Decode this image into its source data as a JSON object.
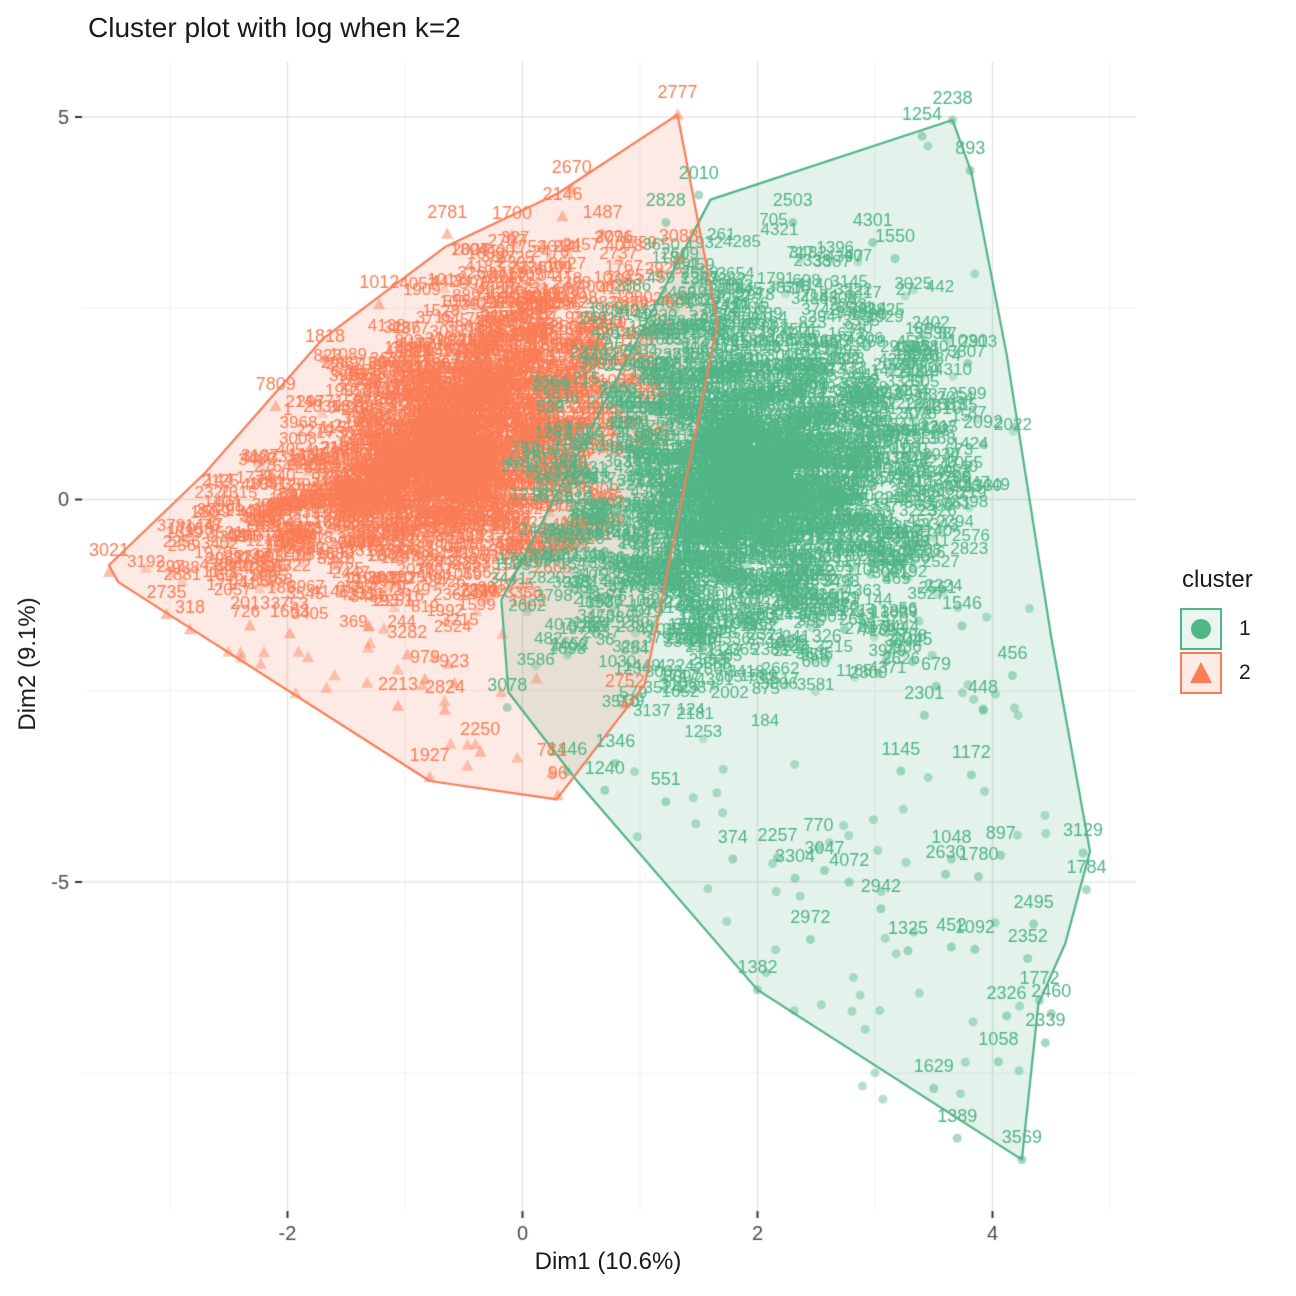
{
  "colors": {
    "cluster1": "#52B586",
    "cluster2": "#FA7D57",
    "hull_fill_alpha": 0.16,
    "grid_major": "#E4E4E4",
    "grid_minor": "#F1F1F1",
    "tick_mark": "#333333",
    "tick_label": "#4D4D4D",
    "text": "#1A1A1A",
    "background": "#FFFFFF"
  },
  "chart_data": {
    "type": "scatter",
    "title": "Cluster plot with log when k=2",
    "xlabel": "Dim1 (10.6%)",
    "ylabel": "Dim2 (9.1%)",
    "xlim": [
      -3.75,
      5.21
    ],
    "ylim": [
      -9.3,
      5.72
    ],
    "grid": true,
    "x_major_ticks": [
      {
        "value": -2,
        "label": "-2"
      },
      {
        "value": 0,
        "label": "0"
      },
      {
        "value": 2,
        "label": "2"
      },
      {
        "value": 4,
        "label": "4"
      }
    ],
    "y_major_ticks": [
      {
        "value": 5,
        "label": "5"
      },
      {
        "value": 0,
        "label": "0"
      },
      {
        "value": -5,
        "label": "-5"
      }
    ],
    "x_minor_ticks": [
      -3,
      -1,
      1,
      3,
      5
    ],
    "y_minor_ticks": [
      2.5,
      -2.5,
      -7.5
    ],
    "legend": {
      "title": "cluster",
      "position": "right",
      "entries": [
        {
          "label": "1",
          "marker": "circle",
          "color": "#52B586"
        },
        {
          "label": "2",
          "marker": "triangle",
          "color": "#FA7D57"
        }
      ]
    },
    "clusters": [
      {
        "name": "1",
        "color": "#52B586",
        "marker": "circle",
        "hull": [
          [
            3.66,
            4.96
          ],
          [
            3.82,
            4.28
          ],
          [
            4.12,
            1.9
          ],
          [
            4.5,
            -1.8
          ],
          [
            4.83,
            -4.6
          ],
          [
            4.62,
            -5.8
          ],
          [
            4.39,
            -6.6
          ],
          [
            4.25,
            -8.63
          ],
          [
            2.0,
            -6.41
          ],
          [
            0.48,
            -3.71
          ],
          [
            -0.12,
            -2.52
          ],
          [
            -0.18,
            -1.31
          ],
          [
            1.6,
            3.92
          ]
        ],
        "dense_blob": {
          "polygon": [
            [
              0.55,
              3.3
            ],
            [
              1.5,
              3.75
            ],
            [
              2.9,
              3.6
            ],
            [
              3.85,
              2.7
            ],
            [
              4.25,
              1.1
            ],
            [
              4.05,
              -0.7
            ],
            [
              3.35,
              -2.3
            ],
            [
              2.2,
              -3.15
            ],
            [
              1.0,
              -3.0
            ],
            [
              0.05,
              -2.35
            ],
            [
              -0.2,
              -1.15
            ],
            [
              -0.05,
              0.8
            ]
          ],
          "count": 1700
        },
        "sparse_regions": [
          {
            "polygon": [
              [
                0.55,
                -3.3
              ],
              [
                4.4,
                -3.5
              ],
              [
                4.7,
                -5.5
              ],
              [
                4.2,
                -7.6
              ],
              [
                3.2,
                -8.2
              ],
              [
                2.0,
                -6.3
              ],
              [
                0.8,
                -4.3
              ]
            ],
            "count": 48
          },
          {
            "polygon": [
              [
                2.6,
                -0.8
              ],
              [
                4.35,
                -1.0
              ],
              [
                4.4,
                -3.3
              ],
              [
                2.8,
                -3.3
              ]
            ],
            "count": 18
          }
        ],
        "extra_dots": [
          [
            3.85,
            2.95
          ],
          [
            3.45,
            4.62
          ],
          [
            4.2,
            0.95
          ]
        ],
        "labeled_points": [
          {
            "label": "2238",
            "x": 3.66,
            "y": 4.96
          },
          {
            "label": "1254",
            "x": 3.4,
            "y": 4.75
          },
          {
            "label": "893",
            "x": 3.81,
            "y": 4.3
          },
          {
            "label": "2010",
            "x": 1.5,
            "y": 3.98
          },
          {
            "label": "2828",
            "x": 1.22,
            "y": 3.62
          },
          {
            "label": "2503",
            "x": 2.3,
            "y": 3.62
          },
          {
            "label": "4301",
            "x": 2.98,
            "y": 3.36
          },
          {
            "label": "1550",
            "x": 3.17,
            "y": 3.15
          },
          {
            "label": "1030",
            "x": 3.79,
            "y": 1.78
          },
          {
            "label": "1610",
            "x": 3.57,
            "y": 0.9
          },
          {
            "label": "2092",
            "x": 3.92,
            "y": 0.72
          },
          {
            "label": "226",
            "x": 3.1,
            "y": -1.05
          },
          {
            "label": "1546",
            "x": 3.74,
            "y": -1.65
          },
          {
            "label": "650",
            "x": 2.74,
            "y": -1.7
          },
          {
            "label": "326",
            "x": 2.59,
            "y": -2.08
          },
          {
            "label": "3045",
            "x": 3.32,
            "y": -2.12
          },
          {
            "label": "456",
            "x": 4.17,
            "y": -2.3
          },
          {
            "label": "679",
            "x": 3.52,
            "y": -2.44
          },
          {
            "label": "448",
            "x": 3.92,
            "y": -2.74
          },
          {
            "label": "2301",
            "x": 3.42,
            "y": -2.82
          },
          {
            "label": "3078",
            "x": -0.13,
            "y": -2.72
          },
          {
            "label": "1145",
            "x": 3.22,
            "y": -3.55
          },
          {
            "label": "1172",
            "x": 3.82,
            "y": -3.6
          },
          {
            "label": "1446",
            "x": 0.38,
            "y": -3.56
          },
          {
            "label": "1346",
            "x": 0.79,
            "y": -3.45
          },
          {
            "label": "1240",
            "x": 0.7,
            "y": -3.8
          },
          {
            "label": "551",
            "x": 1.22,
            "y": -3.95
          },
          {
            "label": "374",
            "x": 1.79,
            "y": -4.7
          },
          {
            "label": "2257",
            "x": 2.17,
            "y": -4.68
          },
          {
            "label": "770",
            "x": 2.52,
            "y": -4.55
          },
          {
            "label": "3304",
            "x": 2.32,
            "y": -4.95
          },
          {
            "label": "4072",
            "x": 2.78,
            "y": -5.0
          },
          {
            "label": "3047",
            "x": 2.57,
            "y": -4.85
          },
          {
            "label": "1048",
            "x": 3.65,
            "y": -4.7
          },
          {
            "label": "897",
            "x": 4.07,
            "y": -4.65
          },
          {
            "label": "2630",
            "x": 3.6,
            "y": -4.9
          },
          {
            "label": "1780",
            "x": 3.88,
            "y": -4.93
          },
          {
            "label": "3129",
            "x": 4.77,
            "y": -4.62
          },
          {
            "label": "1784",
            "x": 4.8,
            "y": -5.1
          },
          {
            "label": "2495",
            "x": 4.35,
            "y": -5.55
          },
          {
            "label": "2942",
            "x": 3.05,
            "y": -5.35
          },
          {
            "label": "2972",
            "x": 2.45,
            "y": -5.75
          },
          {
            "label": "1325",
            "x": 3.28,
            "y": -5.9
          },
          {
            "label": "452",
            "x": 3.65,
            "y": -5.85
          },
          {
            "label": "1092",
            "x": 3.85,
            "y": -5.88
          },
          {
            "label": "2352",
            "x": 4.3,
            "y": -6.0
          },
          {
            "label": "1772",
            "x": 4.4,
            "y": -6.55
          },
          {
            "label": "2460",
            "x": 4.5,
            "y": -6.72
          },
          {
            "label": "2326",
            "x": 4.12,
            "y": -6.75
          },
          {
            "label": "2339",
            "x": 4.45,
            "y": -7.1
          },
          {
            "label": "1058",
            "x": 4.05,
            "y": -7.35
          },
          {
            "label": "1629",
            "x": 3.5,
            "y": -7.7
          },
          {
            "label": "1382",
            "x": 2.0,
            "y": -6.41
          },
          {
            "label": "1389",
            "x": 3.7,
            "y": -8.35
          },
          {
            "label": "3569",
            "x": 4.25,
            "y": -8.63
          }
        ]
      },
      {
        "name": "2",
        "color": "#FA7D57",
        "marker": "triangle",
        "hull": [
          [
            1.32,
            5.03
          ],
          [
            1.66,
            2.3
          ],
          [
            1.04,
            -2.42
          ],
          [
            0.29,
            -3.92
          ],
          [
            -0.79,
            -3.68
          ],
          [
            -3.44,
            -1.08
          ],
          [
            -3.52,
            -0.86
          ],
          [
            -2.7,
            0.35
          ],
          [
            -1.7,
            2.1
          ],
          [
            -0.66,
            3.3
          ],
          [
            0.3,
            4.0
          ]
        ],
        "dense_blob": {
          "polygon": [
            [
              -3.45,
              -0.95
            ],
            [
              -2.6,
              0.4
            ],
            [
              -1.15,
              2.8
            ],
            [
              0.25,
              3.95
            ],
            [
              1.1,
              3.6
            ],
            [
              1.55,
              2.5
            ],
            [
              1.35,
              1.0
            ],
            [
              0.7,
              -1.1
            ],
            [
              -0.3,
              -1.85
            ],
            [
              -1.8,
              -1.7
            ],
            [
              -3.1,
              -1.4
            ]
          ],
          "count": 1500
        },
        "sparse_regions": [
          {
            "polygon": [
              [
                -3.1,
                -1.45
              ],
              [
                0.15,
                -1.7
              ],
              [
                0.6,
                -3.3
              ],
              [
                -0.6,
                -3.6
              ],
              [
                -2.6,
                -2.0
              ]
            ],
            "count": 26
          }
        ],
        "extra_dots": [
          [
            -0.4,
            -3.2
          ],
          [
            -1.6,
            -2.3
          ],
          [
            -2.2,
            -2.0
          ]
        ],
        "labeled_points": [
          {
            "label": "2777",
            "x": 1.32,
            "y": 5.03
          },
          {
            "label": "2670",
            "x": 0.42,
            "y": 4.05
          },
          {
            "label": "2146",
            "x": 0.34,
            "y": 3.7
          },
          {
            "label": "1700",
            "x": -0.09,
            "y": 3.45
          },
          {
            "label": "2781",
            "x": -0.64,
            "y": 3.47
          },
          {
            "label": "1487",
            "x": 0.68,
            "y": 3.47
          },
          {
            "label": "3088",
            "x": 1.33,
            "y": 3.15
          },
          {
            "label": "1012",
            "x": -1.22,
            "y": 2.55
          },
          {
            "label": "1818",
            "x": -1.68,
            "y": 1.85
          },
          {
            "label": "7809",
            "x": -2.1,
            "y": 1.22
          },
          {
            "label": "3021",
            "x": -3.52,
            "y": -0.95
          },
          {
            "label": "2735",
            "x": -3.03,
            "y": -1.5
          },
          {
            "label": "318",
            "x": -2.83,
            "y": -1.7
          },
          {
            "label": "2013",
            "x": -2.32,
            "y": -1.65
          },
          {
            "label": "1663",
            "x": -1.98,
            "y": -1.75
          },
          {
            "label": "3282",
            "x": -0.98,
            "y": -2.03
          },
          {
            "label": "979",
            "x": -0.83,
            "y": -2.35
          },
          {
            "label": "923",
            "x": -0.58,
            "y": -2.4
          },
          {
            "label": "2213",
            "x": -1.06,
            "y": -2.7
          },
          {
            "label": "2824",
            "x": -0.66,
            "y": -2.75
          },
          {
            "label": "2752",
            "x": 0.87,
            "y": -2.67
          },
          {
            "label": "2250",
            "x": -0.36,
            "y": -3.3
          },
          {
            "label": "1927",
            "x": -0.79,
            "y": -3.63
          },
          {
            "label": "781",
            "x": 0.25,
            "y": -3.57
          },
          {
            "label": "96",
            "x": 0.3,
            "y": -3.87
          }
        ]
      }
    ]
  }
}
